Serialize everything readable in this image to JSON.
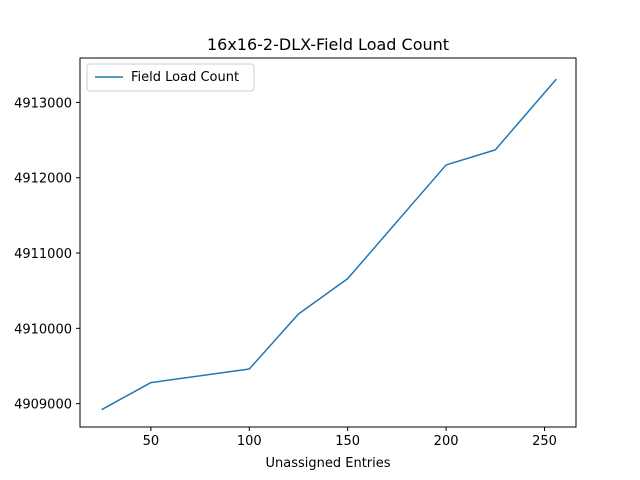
{
  "chart_data": {
    "type": "line",
    "title": "16x16-2-DLX-Field Load Count",
    "xlabel": "Unassigned Entries",
    "ylabel": "",
    "xlim": [
      14,
      266
    ],
    "ylim": [
      4908690,
      4913590
    ],
    "x_ticks": [
      50,
      100,
      150,
      200,
      250
    ],
    "y_ticks": [
      4909000,
      4910000,
      4911000,
      4912000,
      4913000
    ],
    "grid": false,
    "legend_position": "upper-left",
    "series": [
      {
        "name": "Field Load Count",
        "color": "#1f77b4",
        "x": [
          25,
          50,
          100,
          125,
          150,
          200,
          225,
          256
        ],
        "y": [
          4908920,
          4909280,
          4909460,
          4910190,
          4910660,
          4912170,
          4912370,
          4913310
        ]
      }
    ]
  }
}
